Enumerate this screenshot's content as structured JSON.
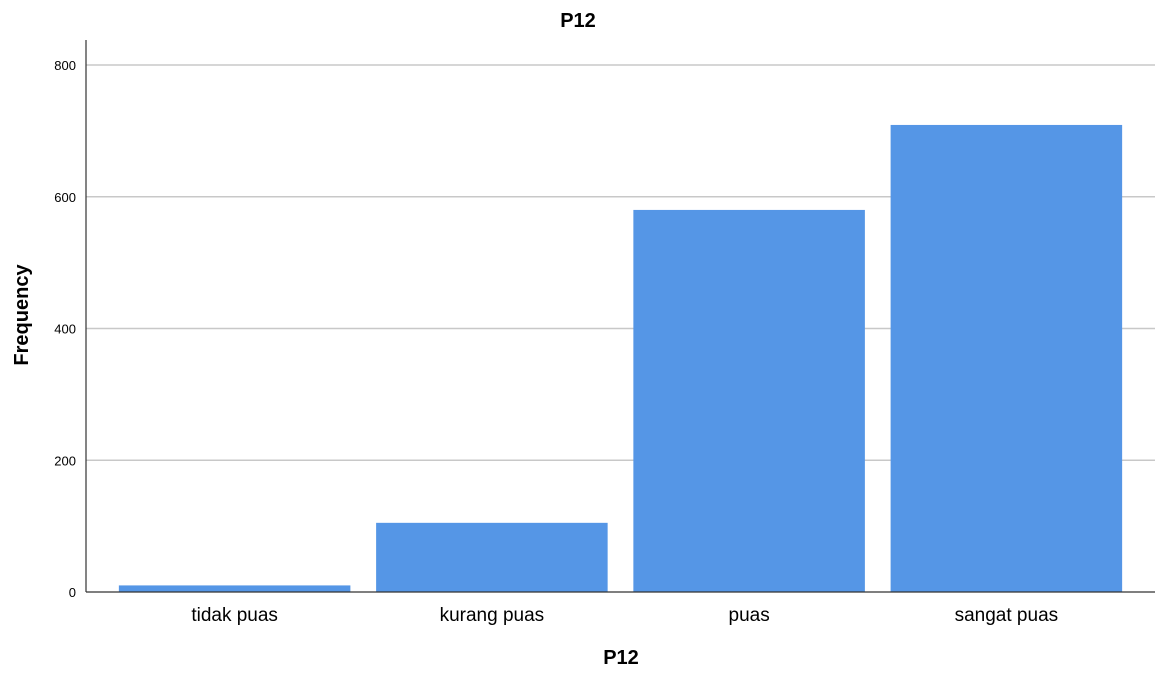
{
  "chart_data": {
    "type": "bar",
    "title": "P12",
    "xlabel": "P12",
    "ylabel": "Frequency",
    "categories": [
      "tidak puas",
      "kurang puas",
      "puas",
      "sangat puas"
    ],
    "values": [
      10,
      105,
      580,
      709
    ],
    "ylim": [
      0,
      840
    ],
    "yticks": [
      "0",
      "200",
      "400",
      "600",
      "800"
    ],
    "grid": true,
    "legend": "none",
    "bar_color": "#5596e6"
  }
}
